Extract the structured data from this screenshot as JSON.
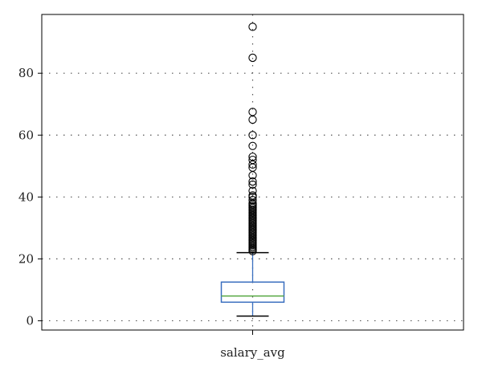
{
  "chart_data": {
    "type": "box",
    "title": "",
    "xlabel": "",
    "ylabel": "",
    "categories": [
      "salary_avg"
    ],
    "ylim": [
      -3,
      99
    ],
    "yticks": [
      0,
      20,
      40,
      60,
      80
    ],
    "grid": true,
    "box": {
      "whisker_low": 1.5,
      "q1": 6,
      "median": 8,
      "q3": 12.5,
      "whisker_high": 22
    },
    "outliers": [
      22.5,
      23,
      23.5,
      24,
      24.5,
      25,
      25.5,
      26,
      26.5,
      27,
      27.5,
      28,
      28.5,
      29,
      29.5,
      30,
      30.5,
      31,
      31.5,
      32,
      32.5,
      33,
      33.5,
      34,
      34.5,
      35,
      35.5,
      36,
      36.5,
      37,
      37.5,
      38,
      39,
      40,
      40.5,
      42,
      44,
      45,
      47,
      49.5,
      50.5,
      52,
      53,
      56.5,
      60,
      65,
      67.5,
      85,
      95
    ],
    "colors": {
      "box": "#3a6fbf",
      "median": "#56a842",
      "whisker": "#3a6fbf",
      "cap": "#000000",
      "outlier": "#000000",
      "grid": "#555555",
      "frame": "#000000"
    }
  }
}
